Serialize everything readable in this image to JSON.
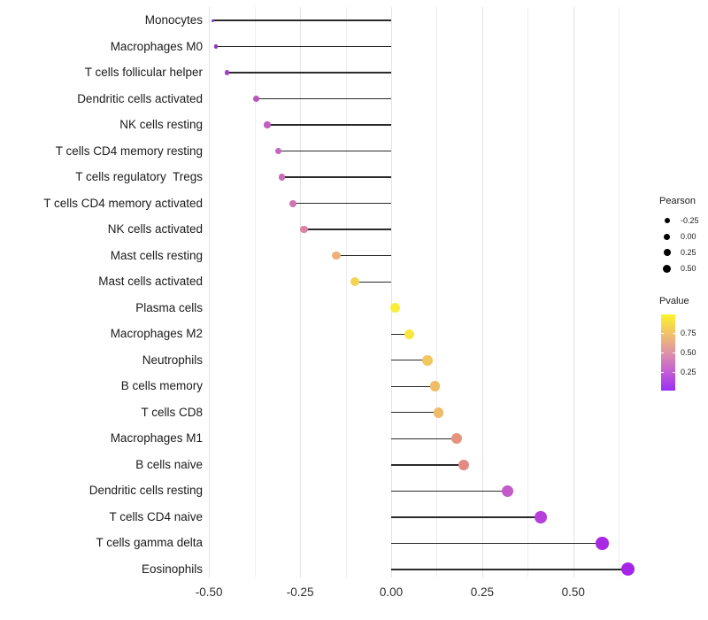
{
  "chart_data": {
    "type": "lollipop",
    "orientation": "horizontal",
    "title": "",
    "xlabel": "",
    "ylabel": "",
    "x_ticks": [
      -0.5,
      -0.25,
      0,
      0.25,
      0.5
    ],
    "x_tick_labels": [
      "-0.50",
      "-0.25",
      "0.00",
      "0.25",
      "0.50"
    ],
    "xlim": [
      -0.547,
      0.707
    ],
    "grid": {
      "show": true,
      "major_step": 0.25,
      "minor_step": 0.125
    },
    "baseline": 0,
    "stem_color": "#2a2a2a",
    "size_encoding": "Pearson",
    "color_encoding": "Pvalue",
    "points": [
      {
        "label": "Monocytes",
        "pearson": -0.49,
        "color": "#9232C8"
      },
      {
        "label": "Macrophages M0",
        "pearson": -0.48,
        "color": "#9632C6"
      },
      {
        "label": "T cells follicular helper",
        "pearson": -0.45,
        "color": "#A13FC2"
      },
      {
        "label": "Dendritic cells activated",
        "pearson": -0.37,
        "color": "#B956BE"
      },
      {
        "label": "NK cells resting",
        "pearson": -0.34,
        "color": "#BE60BE"
      },
      {
        "label": "T cells CD4 memory resting",
        "pearson": -0.31,
        "color": "#C568BC"
      },
      {
        "label": "T cells regulatory  Tregs",
        "pearson": -0.3,
        "color": "#C86CBA"
      },
      {
        "label": "T cells CD4 memory activated",
        "pearson": -0.27,
        "color": "#CD75B5"
      },
      {
        "label": "NK cells activated",
        "pearson": -0.24,
        "color": "#DE81A4"
      },
      {
        "label": "Mast cells resting",
        "pearson": -0.15,
        "color": "#EFB077"
      },
      {
        "label": "Mast cells activated",
        "pearson": -0.1,
        "color": "#F4D355"
      },
      {
        "label": "Plasma cells",
        "pearson": 0.01,
        "color": "#F8EE38"
      },
      {
        "label": "Macrophages M2",
        "pearson": 0.05,
        "color": "#F7E73E"
      },
      {
        "label": "Neutrophils",
        "pearson": 0.1,
        "color": "#F1C75F"
      },
      {
        "label": "B cells memory",
        "pearson": 0.12,
        "color": "#F0BD66"
      },
      {
        "label": "T cells CD8",
        "pearson": 0.13,
        "color": "#EFBA69"
      },
      {
        "label": "Macrophages M1",
        "pearson": 0.18,
        "color": "#E6937B"
      },
      {
        "label": "B cells naive",
        "pearson": 0.2,
        "color": "#E38B82"
      },
      {
        "label": "Dendritic cells resting",
        "pearson": 0.32,
        "color": "#C45AC9"
      },
      {
        "label": "T cells CD4 naive",
        "pearson": 0.41,
        "color": "#B63EDA"
      },
      {
        "label": "T cells gamma delta",
        "pearson": 0.58,
        "color": "#A928E4"
      },
      {
        "label": "Eosinophils",
        "pearson": 0.65,
        "color": "#A524E8"
      }
    ]
  },
  "legend_pearson": {
    "title": "Pearson",
    "items": [
      {
        "label": "-0.25",
        "size": 6
      },
      {
        "label": "0.00",
        "size": 7
      },
      {
        "label": "0.25",
        "size": 8
      },
      {
        "label": "0.50",
        "size": 9
      }
    ]
  },
  "legend_pvalue": {
    "title": "Pvalue",
    "tick_labels": [
      "0.75",
      "0.50",
      "0.25"
    ],
    "tick_positions_pct": [
      24,
      50,
      76
    ],
    "gradient": [
      "#FCF32C",
      "#F2C169",
      "#DE93A6",
      "#C45ED3",
      "#982FF3"
    ]
  }
}
